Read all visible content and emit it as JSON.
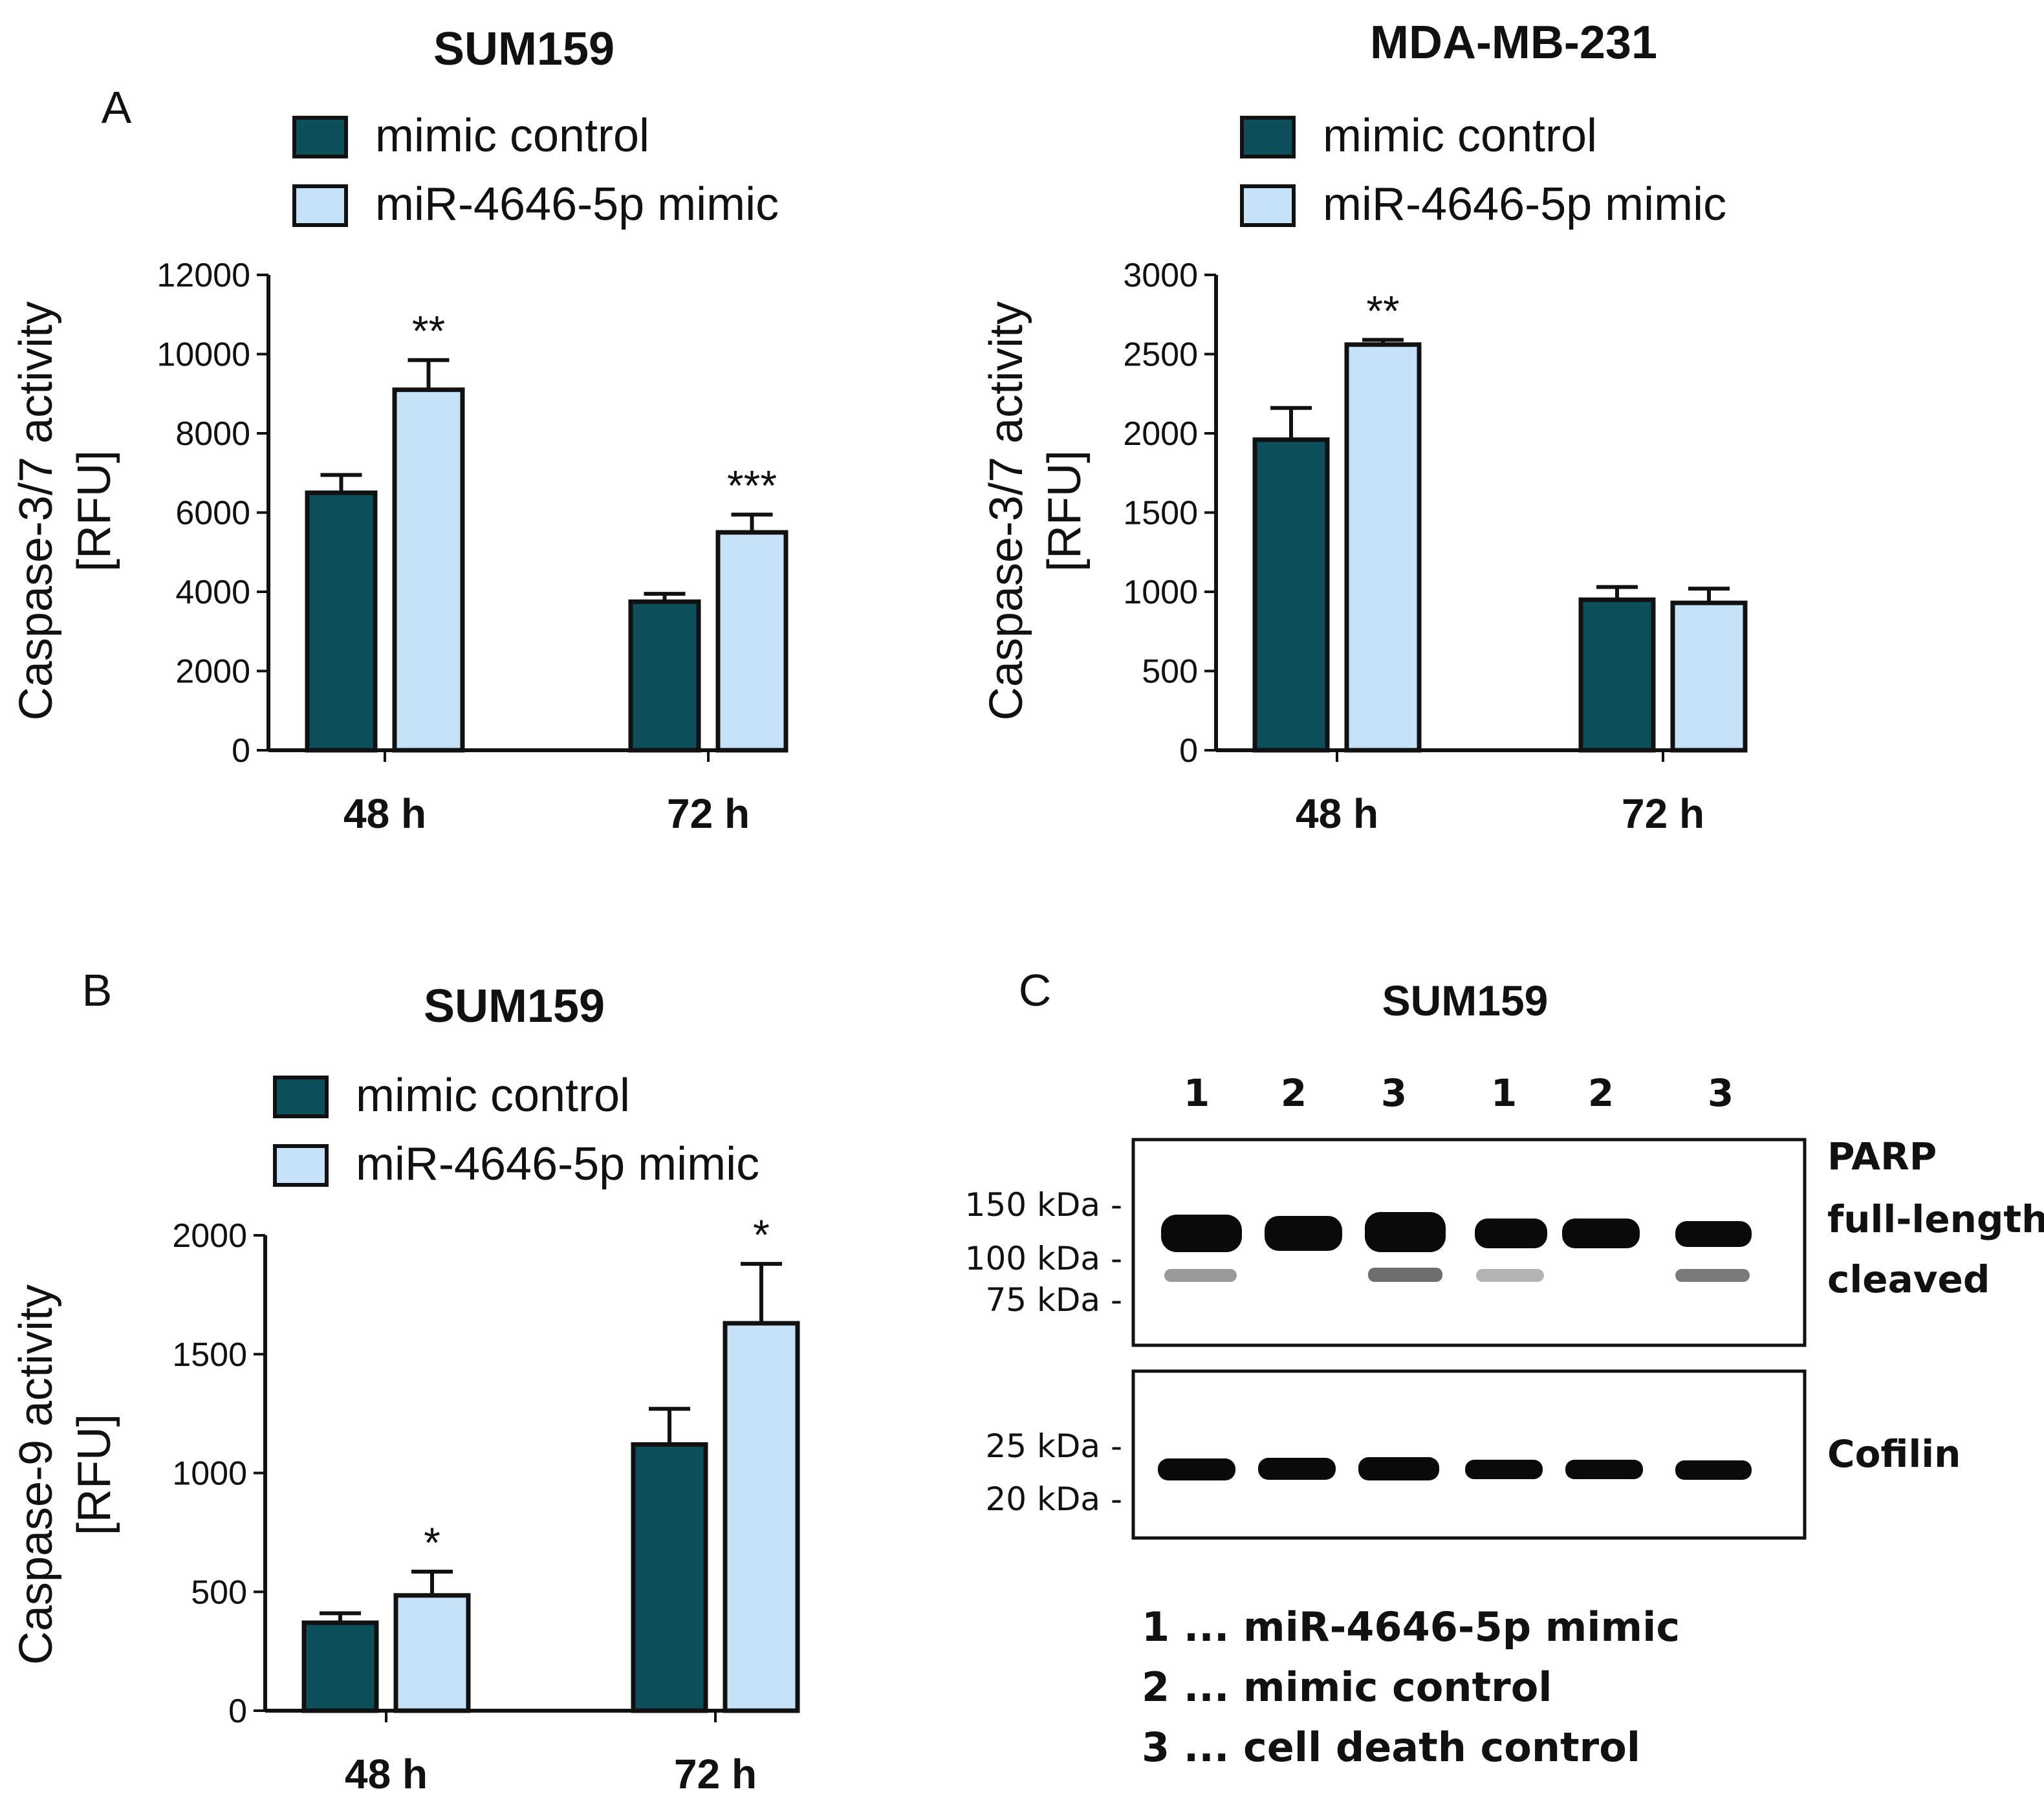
{
  "colors": {
    "control": "#0c4f5b",
    "mimic": "#c5e2f9",
    "stroke": "#111111",
    "gel_dark": "#0a0a0a",
    "gel_faint": "#7a7a7a"
  },
  "legend": {
    "control_label": "mimic control",
    "mimic_label": "miR-4646-5p mimic"
  },
  "chart_data": [
    {
      "id": "A-left",
      "panel_letter": "A",
      "type": "bar",
      "title": "SUM159",
      "ylabel_line1": "Caspase-3/7 activity",
      "ylabel_line2": "[RFU]",
      "xlabel": "",
      "categories": [
        "48 h",
        "72 h"
      ],
      "ylim": [
        0,
        12000
      ],
      "yticks": [
        0,
        2000,
        4000,
        6000,
        8000,
        10000,
        12000
      ],
      "series": [
        {
          "name": "mimic control",
          "values": [
            6500,
            3750
          ],
          "errors": [
            450,
            200
          ],
          "sig": [
            "",
            ""
          ]
        },
        {
          "name": "miR-4646-5p mimic",
          "values": [
            9100,
            5500
          ],
          "errors": [
            750,
            450
          ],
          "sig": [
            "**",
            "***"
          ]
        }
      ]
    },
    {
      "id": "A-right",
      "panel_letter": "",
      "type": "bar",
      "title": "MDA-MB-231",
      "ylabel_line1": "Caspase-3/7 activity",
      "ylabel_line2": "[RFU]",
      "xlabel": "",
      "categories": [
        "48 h",
        "72 h"
      ],
      "ylim": [
        0,
        3000
      ],
      "yticks": [
        0,
        500,
        1000,
        1500,
        2000,
        2500,
        3000
      ],
      "series": [
        {
          "name": "mimic control",
          "values": [
            1960,
            950
          ],
          "errors": [
            200,
            80
          ],
          "sig": [
            "",
            ""
          ]
        },
        {
          "name": "miR-4646-5p mimic",
          "values": [
            2560,
            930
          ],
          "errors": [
            30,
            90
          ],
          "sig": [
            "**",
            ""
          ]
        }
      ]
    },
    {
      "id": "B",
      "panel_letter": "B",
      "type": "bar",
      "title": "SUM159",
      "ylabel_line1": "Caspase-9 activity",
      "ylabel_line2": "[RFU]",
      "xlabel": "",
      "categories": [
        "48 h",
        "72 h"
      ],
      "ylim": [
        0,
        2000
      ],
      "yticks": [
        0,
        500,
        1000,
        1500,
        2000
      ],
      "series": [
        {
          "name": "mimic control",
          "values": [
            370,
            1120
          ],
          "errors": [
            40,
            150
          ],
          "sig": [
            "",
            ""
          ]
        },
        {
          "name": "miR-4646-5p mimic",
          "values": [
            485,
            1630
          ],
          "errors": [
            100,
            250
          ],
          "sig": [
            "*",
            "*"
          ]
        }
      ]
    }
  ],
  "blot": {
    "panel_letter": "C",
    "title": "SUM159",
    "lanes": [
      "1",
      "2",
      "3",
      "1",
      "2",
      "3"
    ],
    "parp_label": "PARP",
    "full_length_label": "full-length",
    "cleaved_label": "cleaved",
    "cofilin_label": "Cofilin",
    "parp_markers": [
      "150 kDa -",
      "100 kDa -",
      "75 kDa -"
    ],
    "cofilin_markers": [
      "25 kDa -",
      "20 kDa -"
    ],
    "key": [
      "1 ... miR-4646-5p mimic",
      "2 ... mimic control",
      "3 ... cell death control"
    ]
  }
}
